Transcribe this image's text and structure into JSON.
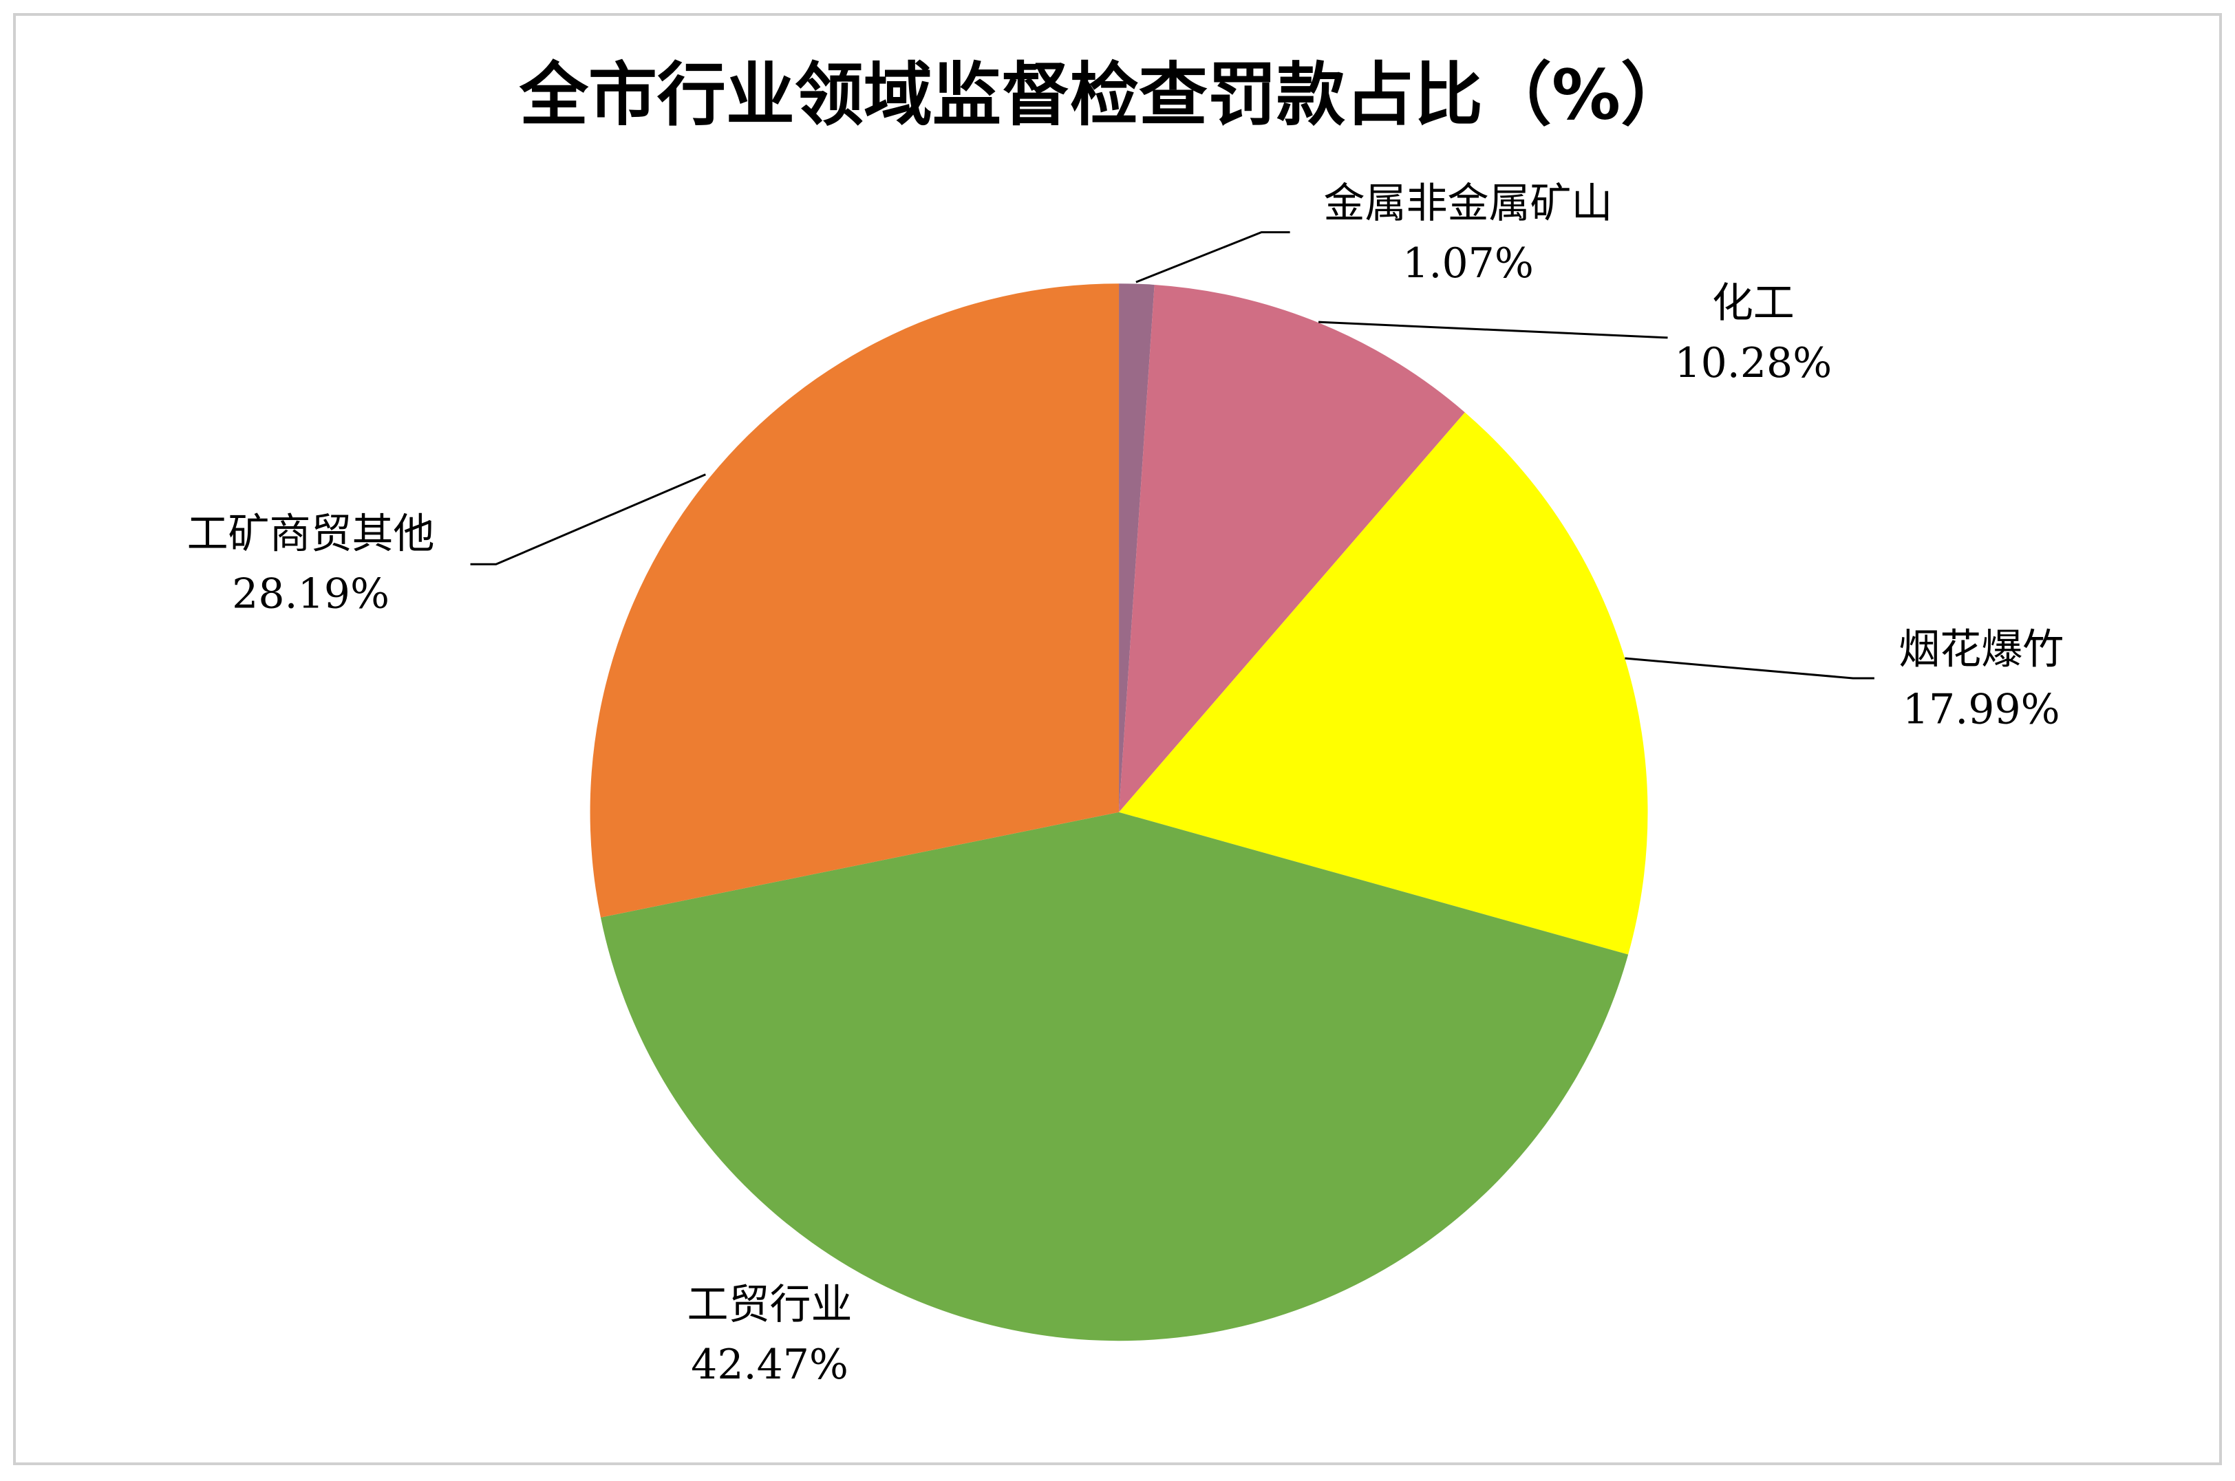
{
  "chart_data": {
    "type": "pie",
    "title": "全市行业领域监督检查罚款占比（%）",
    "categories": [
      "金属非金属矿山",
      "化工",
      "烟花爆竹",
      "工贸行业",
      "工矿商贸其他"
    ],
    "values": [
      1.07,
      10.28,
      17.99,
      42.47,
      28.19
    ],
    "value_labels": [
      "1.07%",
      "10.28%",
      "17.99%",
      "42.47%",
      "28.19%"
    ],
    "colors": [
      "#9a6a88",
      "#d06e84",
      "#ffff00",
      "#70ad47",
      "#ed7d31"
    ]
  }
}
